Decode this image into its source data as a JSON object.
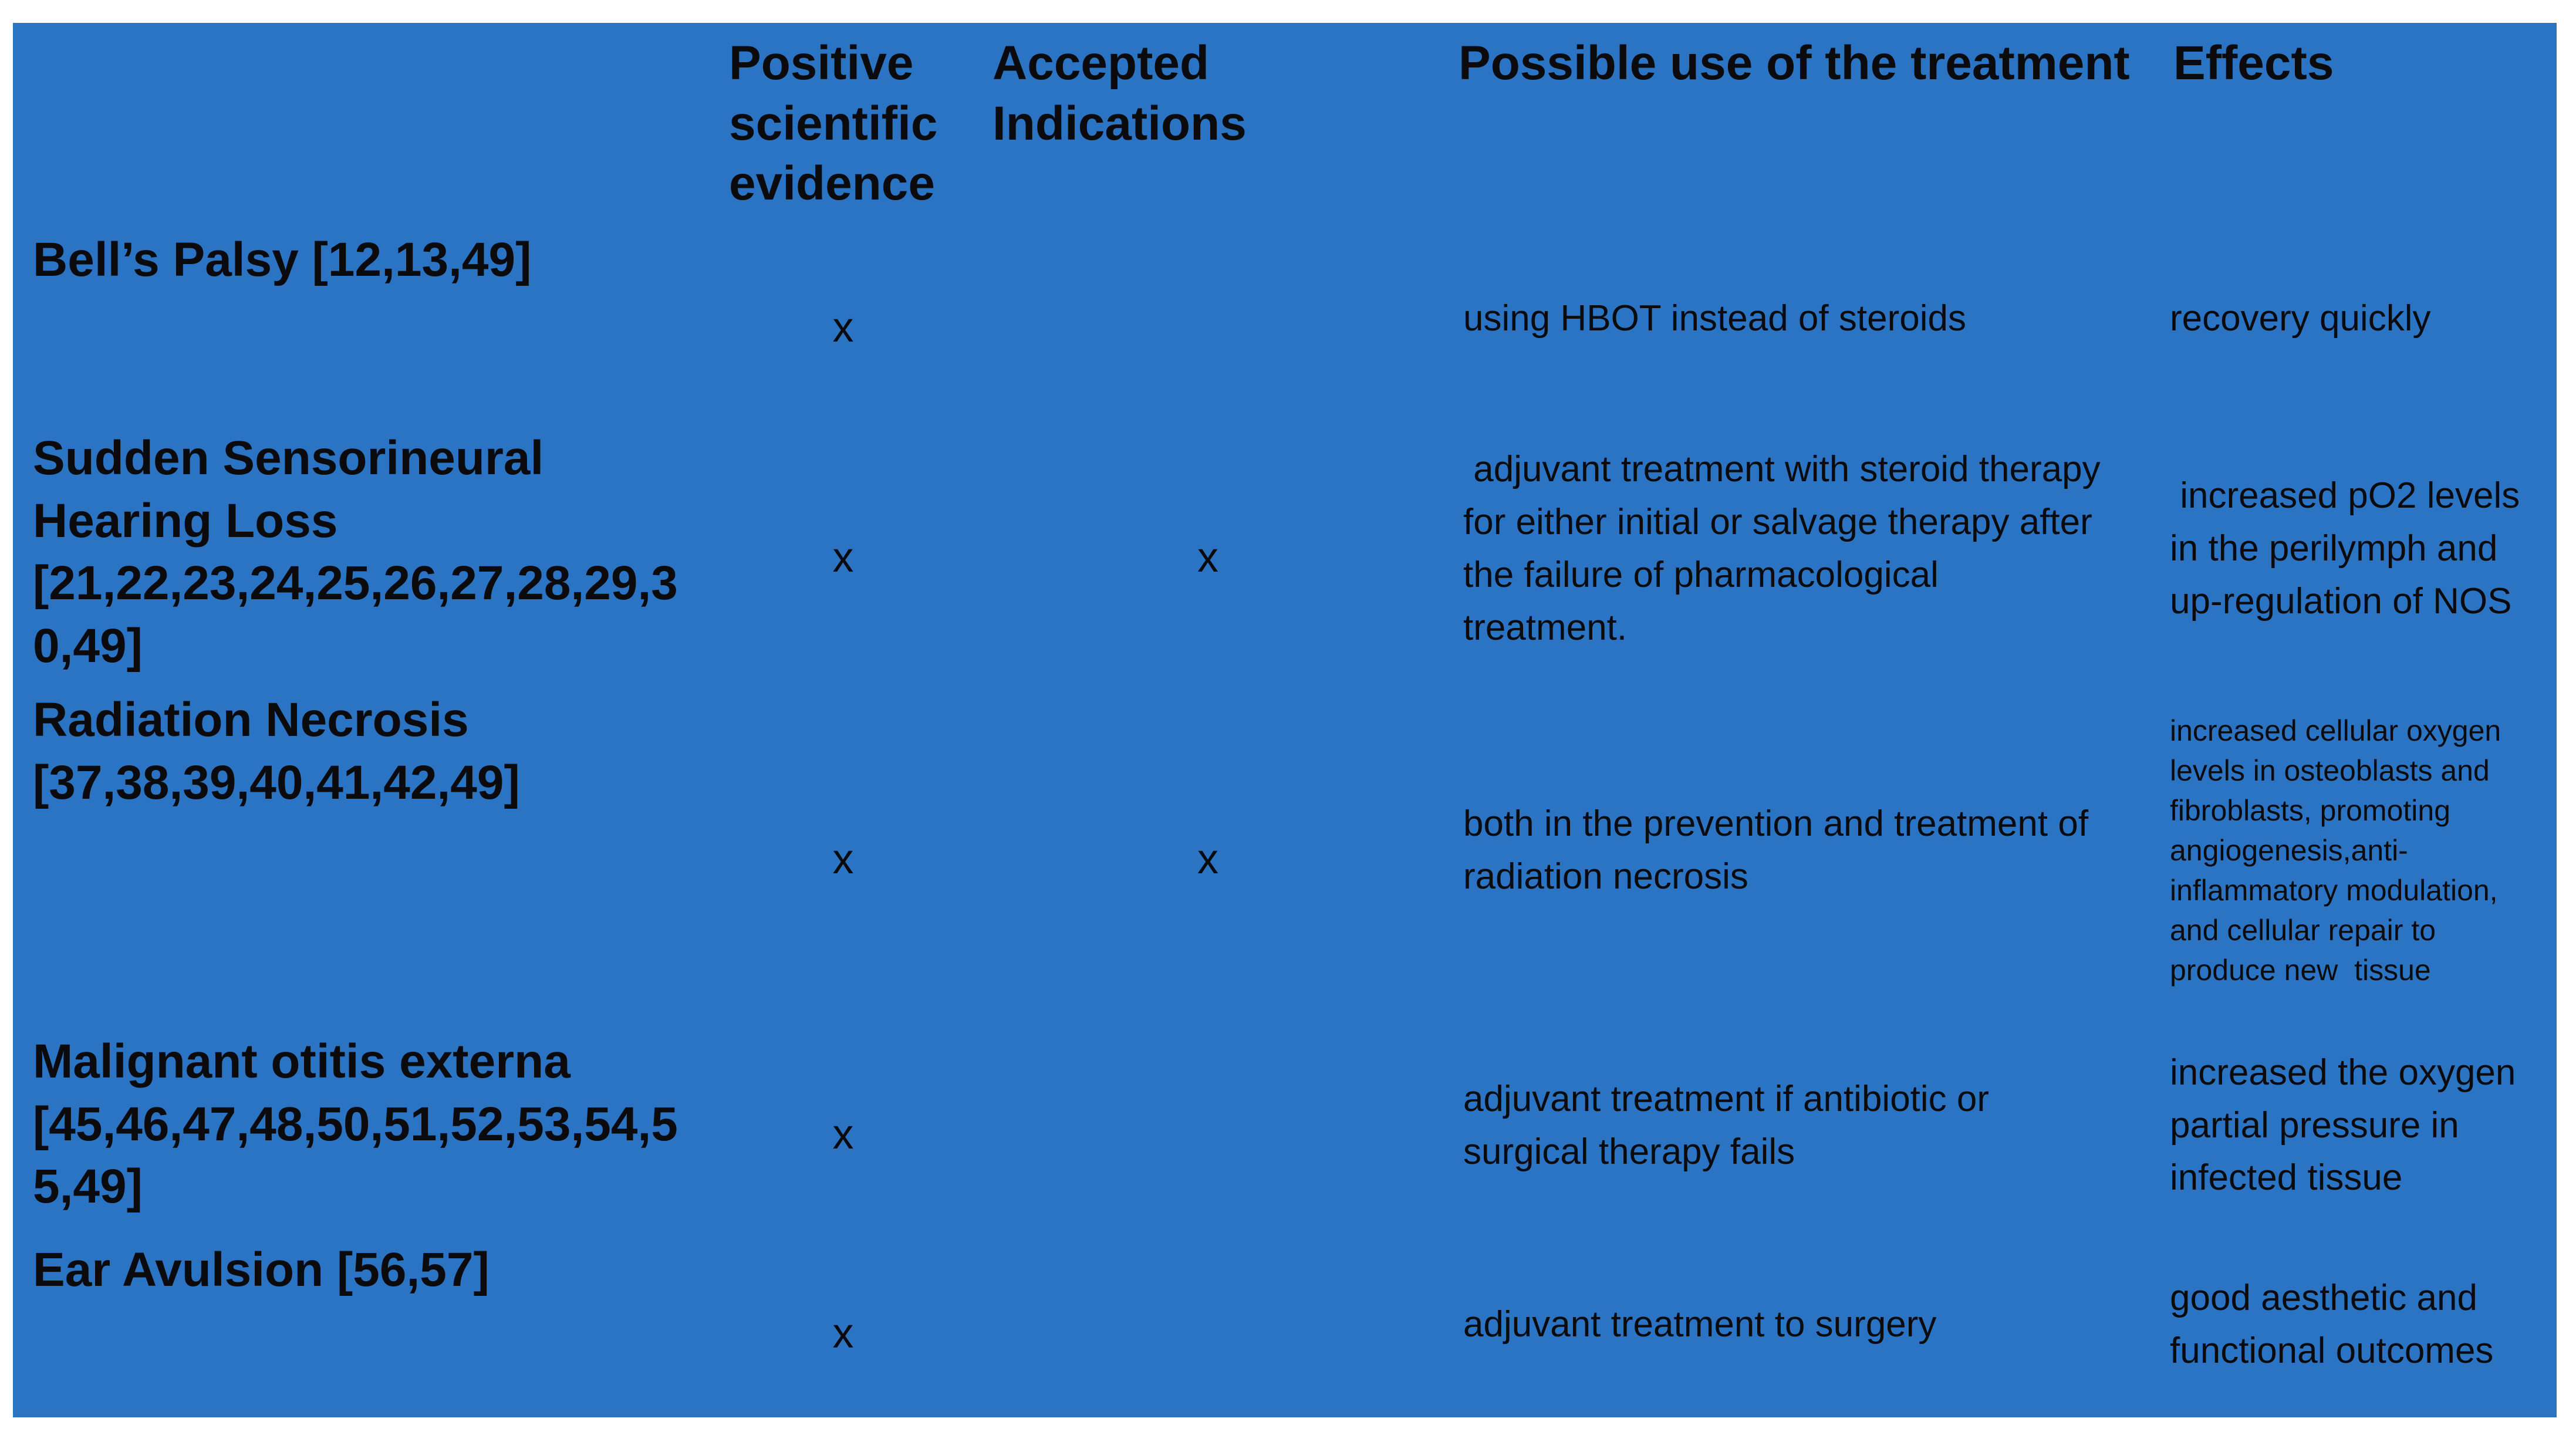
{
  "table": {
    "columns": [
      "",
      "Positive scientific evidence",
      "Accepted Indications",
      "Possible use of the treatment",
      "Effects"
    ],
    "rows": [
      {
        "name": "Bell’s Palsy [12,13,49]",
        "positive_evidence": "x",
        "accepted_indication": "",
        "possible_use": "using HBOT instead of steroids",
        "effects": "recovery quickly"
      },
      {
        "name": "Sudden Sensorineural Hearing Loss [21,22,23,24,25,26,27,28,29,30,49]",
        "positive_evidence": "x",
        "accepted_indication": "x",
        "possible_use": " adjuvant treatment with steroid therapy for either initial or salvage therapy after the failure of pharmacological treatment.",
        "effects": " increased pO2 levels in the perilymph and up-regulation of NOS"
      },
      {
        "name": "Radiation Necrosis [37,38,39,40,41,42,49]",
        "positive_evidence": "x",
        "accepted_indication": "x",
        "possible_use": "both in the prevention and treatment of radiation necrosis",
        "effects": "increased cellular oxygen levels in osteoblasts and fibroblasts, promoting angiogenesis,anti-inflammatory modulation, and cellular repair to produce new  tissue"
      },
      {
        "name": "Malignant otitis externa [45,46,47,48,50,51,52,53,54,55,49]",
        "positive_evidence": "x",
        "accepted_indication": "",
        "possible_use": "adjuvant treatment if antibiotic or surgical therapy fails",
        "effects": "increased the oxygen partial pressure in infected tissue"
      },
      {
        "name": "Ear Avulsion [56,57]",
        "positive_evidence": "x",
        "accepted_indication": "",
        "possible_use": "adjuvant treatment to surgery",
        "effects": "good aesthetic and functional outcomes"
      }
    ]
  },
  "colors": {
    "grid_line": "#2B74C4",
    "row_light": "#E9EBF5",
    "row_dark": "#CAD3EA",
    "text": "#0B0B0D",
    "page_background": "#FFFFFF"
  }
}
